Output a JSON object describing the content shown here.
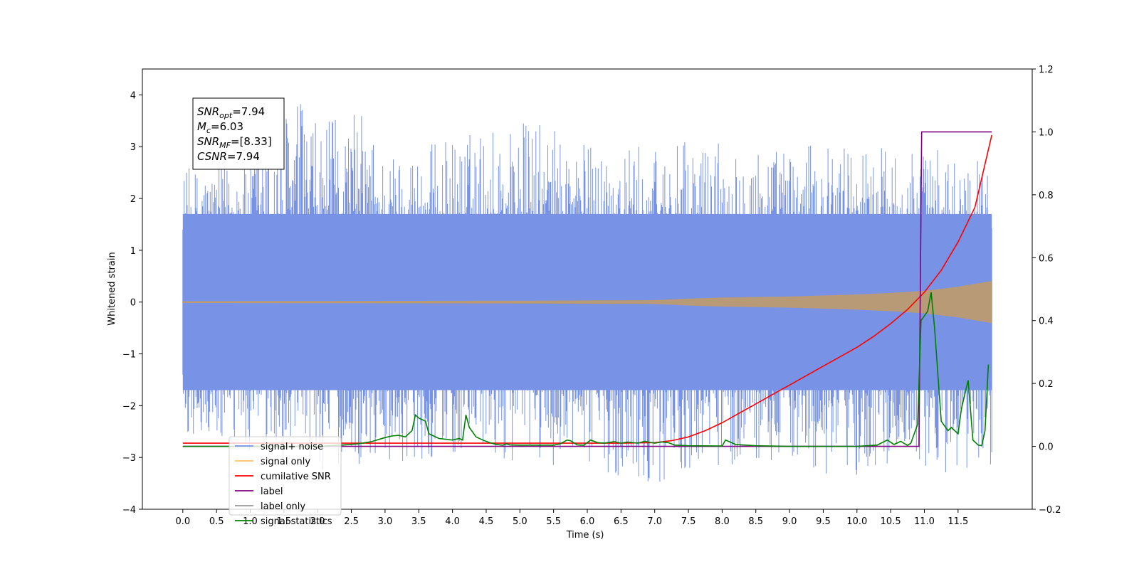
{
  "chart_data": {
    "type": "line",
    "xlabel": "Time (s)",
    "ylabel": "Whitened strain",
    "xlim": [
      -0.6,
      12.6
    ],
    "ylim": [
      -4,
      4.5
    ],
    "ylim_right": [
      -0.2,
      1.2
    ],
    "x_ticks": [
      0.0,
      0.5,
      1.0,
      1.5,
      2.0,
      2.5,
      3.0,
      3.5,
      4.0,
      4.5,
      5.0,
      5.5,
      6.0,
      6.5,
      7.0,
      7.5,
      8.0,
      8.5,
      9.0,
      9.5,
      10.0,
      10.5,
      11.0,
      11.5
    ],
    "x_tick_labels": [
      "0.0",
      "0.5",
      "1.0",
      "1.5",
      "2.0",
      "2.5",
      "3.0",
      "3.5",
      "4.0",
      "4.5",
      "5.0",
      "5.5",
      "6.0",
      "6.5",
      "7.0",
      "7.5",
      "8.0",
      "8.5",
      "9.0",
      "9.5",
      "10.0",
      "10.5",
      "11.0",
      "11.5"
    ],
    "y_ticks": [
      -4,
      -3,
      -2,
      -1,
      0,
      1,
      2,
      3,
      4
    ],
    "y_tick_labels": [
      "−4",
      "−3",
      "−2",
      "−1",
      "0",
      "1",
      "2",
      "3",
      "4"
    ],
    "y_ticks_right": [
      -0.2,
      0.0,
      0.2,
      0.4,
      0.6,
      0.8,
      1.0,
      1.2
    ],
    "y_tick_labels_right": [
      "−0.2",
      "0.0",
      "0.2",
      "0.4",
      "0.6",
      "0.8",
      "1.0",
      "1.2"
    ],
    "grid": false,
    "legend_position": "lower-left",
    "annotation": {
      "lines": [
        {
          "name": "SNR",
          "sub": "opt",
          "value": "=7.94"
        },
        {
          "name": "M",
          "sub": "c",
          "value": "=6.03"
        },
        {
          "name": "SNR",
          "sub": "MF",
          "value": "=[8.33]"
        },
        {
          "name": "CSNR",
          "sub": "",
          "value": "=7.94"
        }
      ]
    },
    "series": [
      {
        "name": "signal+ noise",
        "axis": "left",
        "color": "#7893e6",
        "style": "noise-band",
        "x_range": [
          0.0,
          12.0
        ],
        "core_amplitude": 1.7,
        "upper_envelope": [
          [
            0.0,
            2.6
          ],
          [
            0.5,
            2.6
          ],
          [
            1.0,
            3.0
          ],
          [
            1.7,
            4.1
          ],
          [
            2.0,
            3.4
          ],
          [
            2.6,
            3.8
          ],
          [
            3.0,
            2.9
          ],
          [
            4.0,
            3.2
          ],
          [
            5.0,
            3.6
          ],
          [
            6.0,
            3.1
          ],
          [
            7.0,
            3.0
          ],
          [
            8.0,
            3.2
          ],
          [
            9.0,
            3.0
          ],
          [
            10.0,
            3.1
          ],
          [
            11.0,
            3.0
          ],
          [
            12.0,
            2.7
          ]
        ],
        "lower_envelope": [
          [
            0.0,
            -2.6
          ],
          [
            1.0,
            -3.0
          ],
          [
            2.0,
            -3.3
          ],
          [
            3.0,
            -3.1
          ],
          [
            4.0,
            -3.0
          ],
          [
            5.0,
            -3.1
          ],
          [
            6.0,
            -3.2
          ],
          [
            6.6,
            -3.4
          ],
          [
            7.0,
            -3.5
          ],
          [
            8.0,
            -3.2
          ],
          [
            9.0,
            -3.1
          ],
          [
            9.7,
            -3.6
          ],
          [
            10.5,
            -3.1
          ],
          [
            11.0,
            -3.2
          ],
          [
            11.3,
            -3.5
          ],
          [
            12.0,
            -3.2
          ]
        ]
      },
      {
        "name": "signal only",
        "axis": "left",
        "color": "#b89a76",
        "legend_color": "#ffc266",
        "style": "chirp-band",
        "amplitude": [
          [
            0.0,
            0.01
          ],
          [
            5.0,
            0.02
          ],
          [
            7.0,
            0.03
          ],
          [
            7.5,
            0.06
          ],
          [
            8.0,
            0.08
          ],
          [
            9.0,
            0.1
          ],
          [
            10.0,
            0.14
          ],
          [
            10.5,
            0.17
          ],
          [
            11.0,
            0.21
          ],
          [
            11.5,
            0.29
          ],
          [
            12.0,
            0.4
          ]
        ]
      },
      {
        "name": "cumilative SNR",
        "axis": "right",
        "color": "#ff0000",
        "x": [
          0.0,
          1.0,
          2.0,
          3.0,
          4.0,
          5.0,
          6.0,
          6.5,
          7.0,
          7.25,
          7.5,
          7.75,
          8.0,
          8.25,
          8.5,
          8.75,
          9.0,
          9.25,
          9.5,
          9.75,
          10.0,
          10.25,
          10.5,
          10.75,
          11.0,
          11.25,
          11.5,
          11.75,
          12.0
        ],
        "y": [
          0.01,
          0.01,
          0.01,
          0.01,
          0.01,
          0.01,
          0.01,
          0.01,
          0.012,
          0.018,
          0.03,
          0.05,
          0.075,
          0.105,
          0.135,
          0.165,
          0.195,
          0.225,
          0.255,
          0.285,
          0.315,
          0.35,
          0.39,
          0.435,
          0.49,
          0.56,
          0.65,
          0.76,
          0.99
        ]
      },
      {
        "name": "label",
        "axis": "right",
        "color": "#800080",
        "x": [
          0.0,
          10.92,
          10.96,
          12.0
        ],
        "y": [
          0.0,
          0.0,
          1.0,
          1.0
        ]
      },
      {
        "name": "label only",
        "axis": "right",
        "color": "#999999",
        "x": [],
        "y": []
      },
      {
        "name": "signal statistics",
        "axis": "right",
        "color": "#008000",
        "x": [
          0.0,
          1.0,
          2.0,
          2.4,
          2.6,
          2.8,
          3.0,
          3.1,
          3.2,
          3.3,
          3.4,
          3.45,
          3.5,
          3.6,
          3.65,
          3.8,
          4.0,
          4.1,
          4.15,
          4.2,
          4.25,
          4.35,
          4.45,
          4.55,
          4.65,
          4.75,
          4.8,
          4.85,
          5.0,
          5.5,
          5.6,
          5.7,
          5.75,
          5.85,
          5.95,
          6.05,
          6.15,
          6.25,
          6.4,
          6.5,
          6.6,
          6.75,
          6.85,
          7.0,
          7.1,
          7.2,
          7.3,
          7.5,
          8.0,
          8.05,
          8.2,
          8.5,
          9.0,
          10.0,
          10.3,
          10.45,
          10.55,
          10.65,
          10.75,
          10.8,
          10.9,
          10.95,
          11.05,
          11.1,
          11.15,
          11.25,
          11.35,
          11.4,
          11.5,
          11.55,
          11.65,
          11.72,
          11.8,
          11.85,
          11.9,
          11.95
        ],
        "y": [
          0.0,
          0.0,
          0.0,
          0.005,
          0.008,
          0.015,
          0.028,
          0.033,
          0.035,
          0.03,
          0.05,
          0.1,
          0.09,
          0.08,
          0.04,
          0.025,
          0.02,
          0.025,
          0.02,
          0.1,
          0.06,
          0.03,
          0.02,
          0.012,
          0.006,
          0.004,
          0.008,
          0.005,
          0.004,
          0.004,
          0.008,
          0.02,
          0.018,
          0.005,
          0.004,
          0.02,
          0.012,
          0.01,
          0.015,
          0.01,
          0.014,
          0.01,
          0.016,
          0.01,
          0.014,
          0.012,
          0.004,
          0.002,
          0.001,
          0.02,
          0.006,
          0.002,
          0.0,
          0.0,
          0.004,
          0.02,
          0.006,
          0.016,
          0.003,
          0.01,
          0.07,
          0.4,
          0.43,
          0.49,
          0.38,
          0.08,
          0.05,
          0.06,
          0.04,
          0.12,
          0.21,
          0.02,
          0.004,
          0.002,
          0.05,
          0.26
        ]
      }
    ]
  }
}
